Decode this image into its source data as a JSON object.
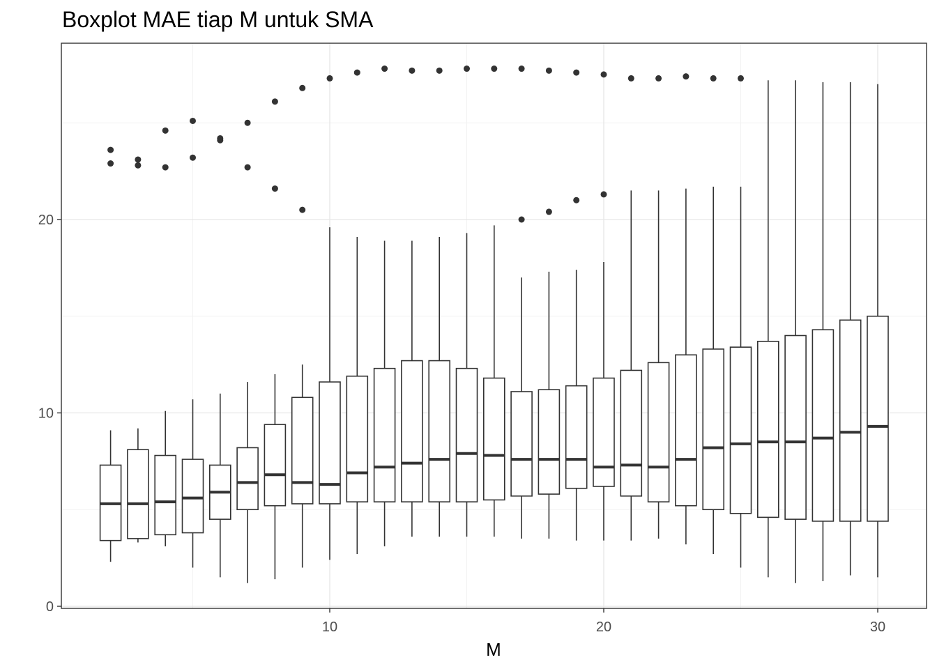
{
  "chart_data": {
    "type": "boxplot",
    "title": "Boxplot MAE tiap M untuk SMA",
    "xlabel": "M",
    "ylabel": "",
    "xlim": [
      1.4,
      30.7
    ],
    "ylim": [
      0,
      28.5
    ],
    "x_ticks": [
      10,
      20,
      30
    ],
    "y_ticks": [
      0,
      10,
      20
    ],
    "grid": true,
    "boxes": [
      {
        "m": 2,
        "lower_whisker": 2.3,
        "q1": 3.4,
        "median": 5.3,
        "q3": 7.3,
        "upper_whisker": 9.1,
        "outliers": [
          22.9,
          23.6
        ]
      },
      {
        "m": 3,
        "lower_whisker": 3.3,
        "q1": 3.5,
        "median": 5.3,
        "q3": 8.1,
        "upper_whisker": 9.2,
        "outliers": [
          22.8,
          23.1
        ]
      },
      {
        "m": 4,
        "lower_whisker": 3.1,
        "q1": 3.7,
        "median": 5.4,
        "q3": 7.8,
        "upper_whisker": 10.1,
        "outliers": [
          22.7,
          24.6
        ]
      },
      {
        "m": 5,
        "lower_whisker": 2.0,
        "q1": 3.8,
        "median": 5.6,
        "q3": 7.6,
        "upper_whisker": 10.7,
        "outliers": [
          23.2,
          25.1
        ]
      },
      {
        "m": 6,
        "lower_whisker": 1.5,
        "q1": 4.5,
        "median": 5.9,
        "q3": 7.3,
        "upper_whisker": 11.0,
        "outliers": [
          24.1,
          24.2
        ]
      },
      {
        "m": 7,
        "lower_whisker": 1.2,
        "q1": 5.0,
        "median": 6.4,
        "q3": 8.2,
        "upper_whisker": 11.6,
        "outliers": [
          22.7,
          25.0
        ]
      },
      {
        "m": 8,
        "lower_whisker": 1.4,
        "q1": 5.2,
        "median": 6.8,
        "q3": 9.4,
        "upper_whisker": 12.0,
        "outliers": [
          21.6,
          26.1
        ]
      },
      {
        "m": 9,
        "lower_whisker": 2.0,
        "q1": 5.3,
        "median": 6.4,
        "q3": 10.8,
        "upper_whisker": 12.5,
        "outliers": [
          20.5,
          26.8
        ]
      },
      {
        "m": 10,
        "lower_whisker": 2.4,
        "q1": 5.3,
        "median": 6.3,
        "q3": 11.6,
        "upper_whisker": 19.6,
        "outliers": [
          27.3
        ]
      },
      {
        "m": 11,
        "lower_whisker": 2.7,
        "q1": 5.4,
        "median": 6.9,
        "q3": 11.9,
        "upper_whisker": 19.1,
        "outliers": [
          27.6
        ]
      },
      {
        "m": 12,
        "lower_whisker": 3.1,
        "q1": 5.4,
        "median": 7.2,
        "q3": 12.3,
        "upper_whisker": 18.9,
        "outliers": [
          27.8
        ]
      },
      {
        "m": 13,
        "lower_whisker": 3.6,
        "q1": 5.4,
        "median": 7.4,
        "q3": 12.7,
        "upper_whisker": 18.9,
        "outliers": [
          27.7
        ]
      },
      {
        "m": 14,
        "lower_whisker": 3.6,
        "q1": 5.4,
        "median": 7.6,
        "q3": 12.7,
        "upper_whisker": 19.1,
        "outliers": [
          27.7
        ]
      },
      {
        "m": 15,
        "lower_whisker": 3.6,
        "q1": 5.4,
        "median": 7.9,
        "q3": 12.3,
        "upper_whisker": 19.3,
        "outliers": [
          27.8
        ]
      },
      {
        "m": 16,
        "lower_whisker": 3.6,
        "q1": 5.5,
        "median": 7.8,
        "q3": 11.8,
        "upper_whisker": 19.7,
        "outliers": [
          27.8
        ]
      },
      {
        "m": 17,
        "lower_whisker": 3.5,
        "q1": 5.7,
        "median": 7.6,
        "q3": 11.1,
        "upper_whisker": 17.0,
        "outliers": [
          20.0,
          27.8
        ]
      },
      {
        "m": 18,
        "lower_whisker": 3.5,
        "q1": 5.8,
        "median": 7.6,
        "q3": 11.2,
        "upper_whisker": 17.3,
        "outliers": [
          20.4,
          27.7
        ]
      },
      {
        "m": 19,
        "lower_whisker": 3.4,
        "q1": 6.1,
        "median": 7.6,
        "q3": 11.4,
        "upper_whisker": 17.4,
        "outliers": [
          21.0,
          27.6
        ]
      },
      {
        "m": 20,
        "lower_whisker": 3.4,
        "q1": 6.2,
        "median": 7.2,
        "q3": 11.8,
        "upper_whisker": 17.8,
        "outliers": [
          21.3,
          27.5
        ]
      },
      {
        "m": 21,
        "lower_whisker": 3.4,
        "q1": 5.7,
        "median": 7.3,
        "q3": 12.2,
        "upper_whisker": 21.5,
        "outliers": [
          27.3
        ]
      },
      {
        "m": 22,
        "lower_whisker": 3.5,
        "q1": 5.4,
        "median": 7.2,
        "q3": 12.6,
        "upper_whisker": 21.5,
        "outliers": [
          27.3
        ]
      },
      {
        "m": 23,
        "lower_whisker": 3.2,
        "q1": 5.2,
        "median": 7.6,
        "q3": 13.0,
        "upper_whisker": 21.6,
        "outliers": [
          27.4
        ]
      },
      {
        "m": 24,
        "lower_whisker": 2.7,
        "q1": 5.0,
        "median": 8.2,
        "q3": 13.3,
        "upper_whisker": 21.7,
        "outliers": [
          27.3
        ]
      },
      {
        "m": 25,
        "lower_whisker": 2.0,
        "q1": 4.8,
        "median": 8.4,
        "q3": 13.4,
        "upper_whisker": 21.7,
        "outliers": [
          27.3
        ]
      },
      {
        "m": 26,
        "lower_whisker": 1.5,
        "q1": 4.6,
        "median": 8.5,
        "q3": 13.7,
        "upper_whisker": 27.2,
        "outliers": []
      },
      {
        "m": 27,
        "lower_whisker": 1.2,
        "q1": 4.5,
        "median": 8.5,
        "q3": 14.0,
        "upper_whisker": 27.2,
        "outliers": []
      },
      {
        "m": 28,
        "lower_whisker": 1.3,
        "q1": 4.4,
        "median": 8.7,
        "q3": 14.3,
        "upper_whisker": 27.1,
        "outliers": []
      },
      {
        "m": 29,
        "lower_whisker": 1.6,
        "q1": 4.4,
        "median": 9.0,
        "q3": 14.8,
        "upper_whisker": 27.1,
        "outliers": []
      },
      {
        "m": 30,
        "lower_whisker": 1.5,
        "q1": 4.4,
        "median": 9.3,
        "q3": 15.0,
        "upper_whisker": 27.0,
        "outliers": []
      }
    ]
  }
}
